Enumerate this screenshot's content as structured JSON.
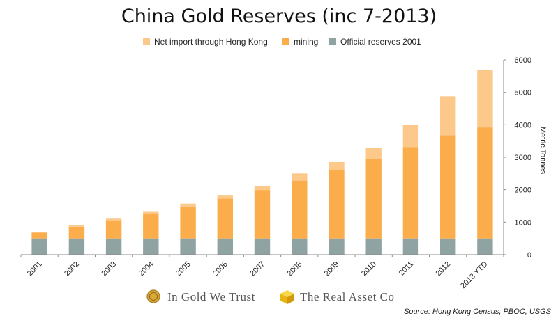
{
  "chart_data": {
    "type": "bar",
    "stacked": true,
    "title": "China Gold Reserves (inc 7-2013)",
    "ylabel": "Metric Tonnes",
    "ylim": [
      0,
      6000
    ],
    "yticks": [
      0,
      1000,
      2000,
      3000,
      4000,
      5000,
      6000
    ],
    "y_axis_position": "right",
    "grid": false,
    "legend_position": "top",
    "categories": [
      "2001",
      "2002",
      "2003",
      "2004",
      "2005",
      "2006",
      "2007",
      "2008",
      "2009",
      "2010",
      "2011",
      "2012",
      "2013 YTD"
    ],
    "series": [
      {
        "name": "Official reserves 2001",
        "color": "#8fa3a3",
        "values": [
          500,
          500,
          500,
          500,
          500,
          500,
          500,
          500,
          500,
          500,
          500,
          500,
          500
        ]
      },
      {
        "name": "mining",
        "color": "#fbac4b",
        "values": [
          180,
          360,
          550,
          760,
          980,
          1230,
          1490,
          1780,
          2100,
          2450,
          2810,
          3180,
          3420
        ]
      },
      {
        "name": "Net import through Hong Kong",
        "color": "#fdc98b",
        "values": [
          20,
          50,
          60,
          80,
          90,
          110,
          130,
          220,
          250,
          340,
          680,
          1200,
          1780
        ]
      }
    ]
  },
  "legend_items": [
    {
      "label": "Net import through Hong Kong",
      "color": "#fdc98b"
    },
    {
      "label": "mining",
      "color": "#fbac4b"
    },
    {
      "label": "Official reserves 2001",
      "color": "#8fa3a3"
    }
  ],
  "logos": {
    "left": "In Gold We Trust",
    "right": "The Real Asset Co"
  },
  "source": "Source: Hong Kong Census, PBOC, USGS",
  "colors": {
    "axis": "#888888",
    "logo_gold": "#d9a93a",
    "logo_cube": "#f2c21a"
  }
}
